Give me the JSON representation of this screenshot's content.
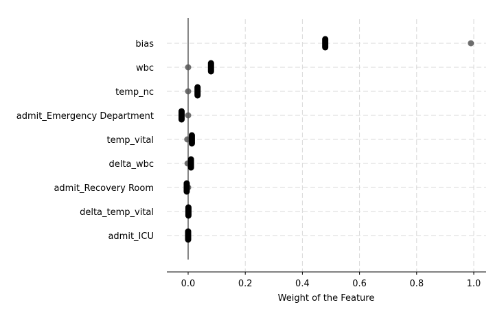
{
  "chart_data": {
    "type": "scatter",
    "title": "",
    "xlabel": "Weight of the Feature",
    "ylabel": "",
    "xlim": [
      -0.07,
      1.04
    ],
    "xticks": [
      0.0,
      0.2,
      0.4,
      0.6,
      0.8,
      1.0
    ],
    "xtick_labels": [
      "0.0",
      "0.2",
      "0.4",
      "0.6",
      "0.8",
      "1.0"
    ],
    "grid": true,
    "reference_line_x": 0.0,
    "categories": [
      "bias",
      "wbc",
      "temp_nc",
      "admit_Emergency Department",
      "temp_vital",
      "delta_wbc",
      "admit_Recovery Room",
      "delta_temp_vital",
      "admit_ICU"
    ],
    "cluster_points": [
      {
        "category": "bias",
        "x": 0.48
      },
      {
        "category": "wbc",
        "x": 0.08
      },
      {
        "category": "temp_nc",
        "x": 0.033
      },
      {
        "category": "admit_Emergency Department",
        "x": -0.023
      },
      {
        "category": "temp_vital",
        "x": 0.013
      },
      {
        "category": "delta_wbc",
        "x": 0.01
      },
      {
        "category": "admit_Recovery Room",
        "x": -0.005
      },
      {
        "category": "delta_temp_vital",
        "x": 0.001
      },
      {
        "category": "admit_ICU",
        "x": 0.0
      }
    ],
    "outlier_points": [
      {
        "category": "bias",
        "x": 0.99
      },
      {
        "category": "wbc",
        "x": 0.0
      },
      {
        "category": "temp_nc",
        "x": 0.0
      },
      {
        "category": "admit_Emergency Department",
        "x": 0.0
      },
      {
        "category": "temp_vital",
        "x": -0.003
      },
      {
        "category": "delta_wbc",
        "x": -0.002
      },
      {
        "category": "admit_Recovery Room",
        "x": 0.0
      }
    ],
    "colors": {
      "cluster": "#000000",
      "outlier": "#555555",
      "grid": "#d9d9d9",
      "reference_line": "#666666"
    }
  }
}
